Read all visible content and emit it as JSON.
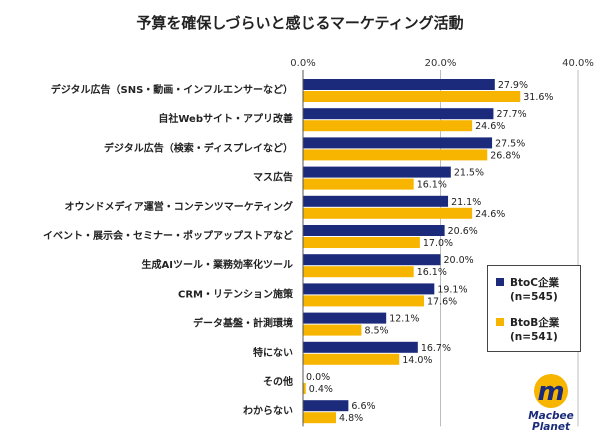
{
  "chart_data": {
    "type": "bar",
    "orientation": "horizontal",
    "title": "予算を確保しづらいと感じるマーケティング活動",
    "categories": [
      "デジタル広告（SNS・動画・インフルエンサーなど）",
      "自社Webサイト・アプリ改善",
      "デジタル広告（検索・ディスプレイなど）",
      "マス広告",
      "オウンドメディア運営・コンテンツマーケティング",
      "イベント・展示会・セミナー・ポップアップストアなど",
      "生成AIツール・業務効率化ツール",
      "CRM・リテンション施策",
      "データ基盤・計測環境",
      "特にない",
      "その他",
      "わからない"
    ],
    "series": [
      {
        "name": "BtoC企業",
        "count_label": "(n=545)",
        "color": "#1b2a7b",
        "values": [
          27.9,
          27.7,
          27.5,
          21.5,
          21.1,
          20.6,
          20.0,
          19.1,
          12.1,
          16.7,
          0.0,
          6.6
        ],
        "labels": [
          "27.9%",
          "27.7%",
          "27.5%",
          "21.5%",
          "21.1%",
          "20.6%",
          "20.0%",
          "19.1%",
          "12.1%",
          "16.7%",
          "0.0%",
          "6.6%"
        ]
      },
      {
        "name": "BtoB企業",
        "count_label": "(n=541)",
        "color": "#f7b500",
        "values": [
          31.6,
          24.6,
          26.8,
          16.1,
          24.6,
          17.0,
          16.1,
          17.6,
          8.5,
          14.0,
          0.4,
          4.8
        ],
        "labels": [
          "31.6%",
          "24.6%",
          "26.8%",
          "16.1%",
          "24.6%",
          "17.0%",
          "16.1%",
          "17.6%",
          "8.5%",
          "14.0%",
          "0.4%",
          "4.8%"
        ]
      }
    ],
    "xlim": [
      0,
      40
    ],
    "xticks": [
      "0.0%",
      "20.0%",
      "40.0%"
    ],
    "grid": true,
    "legend_position": "right"
  },
  "logo": {
    "line1": "Macbee",
    "line2": "Planet",
    "mark": "m",
    "color": "#1a2b7a",
    "accent": "#f7b500"
  }
}
